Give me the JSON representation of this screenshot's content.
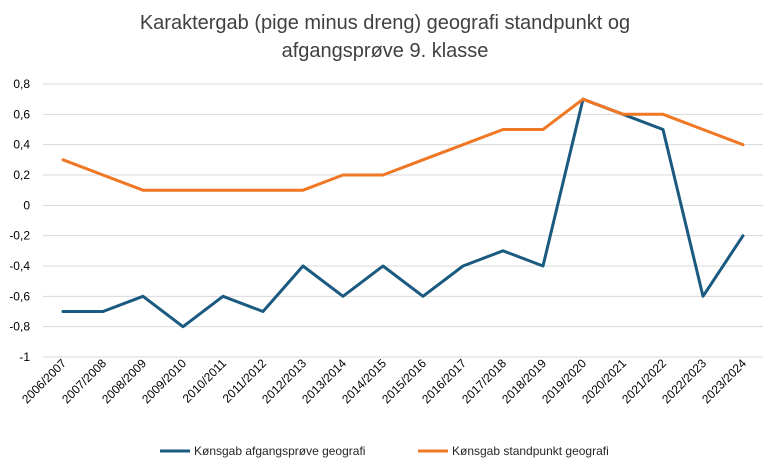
{
  "chart_data": {
    "type": "line",
    "title": "Karaktergab (pige minus dreng) geografi standpunkt og afgangsprøve 9. klasse",
    "title_lines": [
      "Karaktergab (pige minus dreng) geografi standpunkt og",
      "afgangsprøve 9. klasse"
    ],
    "xlabel": "",
    "ylabel": "",
    "ylim": [
      -1,
      0.8
    ],
    "y_ticks": [
      "0,8",
      "0,6",
      "0,4",
      "0,2",
      "0",
      "-0,2",
      "-0,4",
      "-0,6",
      "-0,8",
      "-1"
    ],
    "y_tick_values": [
      0.8,
      0.6,
      0.4,
      0.2,
      0,
      -0.2,
      -0.4,
      -0.6,
      -0.8,
      -1
    ],
    "grid": true,
    "legend_position": "bottom",
    "categories": [
      "2006/2007",
      "2007/2008",
      "2008/2009",
      "2009/2010",
      "2010/2011",
      "2011/2012",
      "2012/2013",
      "2013/2014",
      "2014/2015",
      "2015/2016",
      "2016/2017",
      "2017/2018",
      "2018/2019",
      "2019/2020",
      "2020/2021",
      "2021/2022",
      "2022/2023",
      "2023/2024"
    ],
    "series": [
      {
        "name": "Kønsgab afgangsprøve geografi",
        "color": "#1a5a80",
        "values": [
          -0.7,
          -0.7,
          -0.6,
          -0.8,
          -0.6,
          -0.7,
          -0.4,
          -0.6,
          -0.4,
          -0.6,
          -0.4,
          -0.3,
          -0.4,
          0.7,
          0.6,
          0.5,
          -0.6,
          -0.2
        ]
      },
      {
        "name": "Kønsgab standpunkt geografi",
        "color": "#f07724",
        "values": [
          0.3,
          0.2,
          0.1,
          0.1,
          0.1,
          0.1,
          0.1,
          0.2,
          0.2,
          0.3,
          0.4,
          0.5,
          0.5,
          0.7,
          0.6,
          0.6,
          0.5,
          0.4
        ]
      }
    ]
  }
}
